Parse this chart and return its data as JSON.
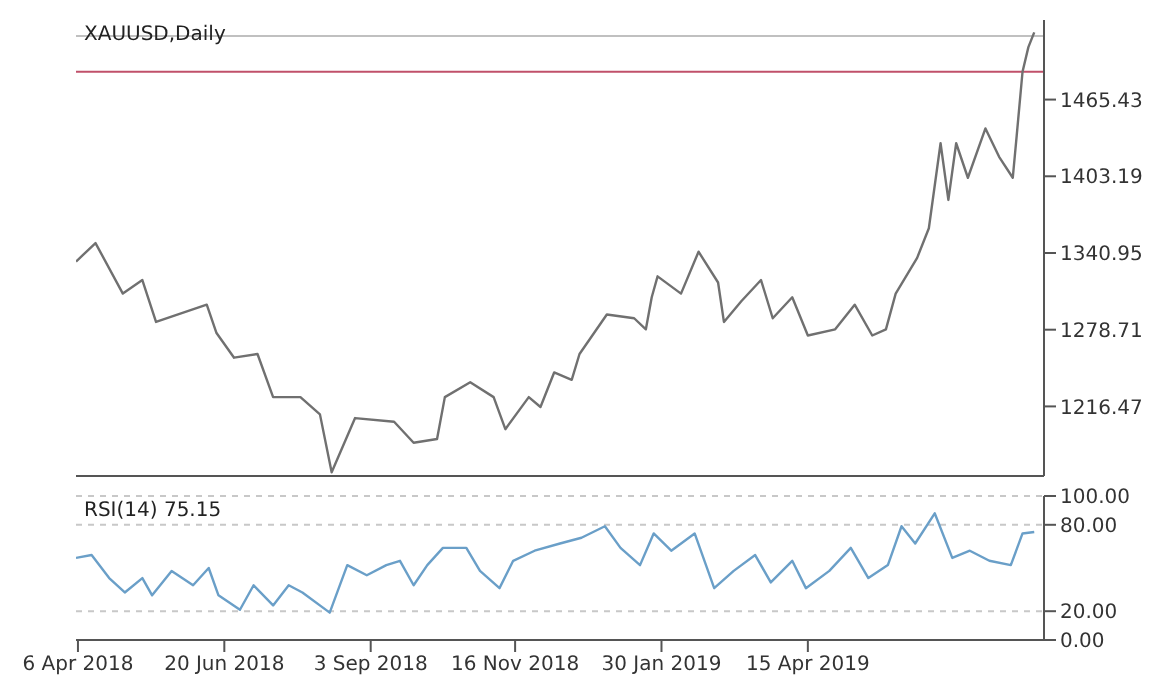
{
  "chart_data": [
    {
      "type": "line",
      "title": "XAUUSD,Daily",
      "tick_labels": "y",
      "x": [
        "2018-04-05",
        "2018-04-15",
        "2018-04-29",
        "2018-05-09",
        "2018-05-16",
        "2018-06-11",
        "2018-06-16",
        "2018-06-25",
        "2018-07-07",
        "2018-07-15",
        "2018-07-29",
        "2018-08-08",
        "2018-08-14",
        "2018-08-26",
        "2018-09-15",
        "2018-09-25",
        "2018-10-07",
        "2018-10-11",
        "2018-10-24",
        "2018-11-05",
        "2018-11-11",
        "2018-11-23",
        "2018-11-29",
        "2018-12-06",
        "2018-12-15",
        "2018-12-19",
        "2019-01-02",
        "2019-01-16",
        "2019-01-22",
        "2019-01-25",
        "2019-01-28",
        "2019-02-09",
        "2019-02-18",
        "2019-02-28",
        "2019-03-03",
        "2019-03-12",
        "2019-03-22",
        "2019-03-28",
        "2019-04-07",
        "2019-04-15",
        "2019-04-29",
        "2019-05-09",
        "2019-05-18",
        "2019-05-25",
        "2019-05-30",
        "2019-06-10",
        "2019-06-16",
        "2019-06-22",
        "2019-06-26",
        "2019-06-30",
        "2019-07-06",
        "2019-07-15",
        "2019-07-22",
        "2019-07-29",
        "2019-07-31",
        "2019-08-03",
        "2019-08-06",
        "2019-08-09"
      ],
      "series": [
        {
          "color": "#707070",
          "values": [
            1334,
            1349,
            1308,
            1319,
            1285,
            1299,
            1276,
            1256,
            1259,
            1224,
            1224,
            1210,
            1163,
            1207,
            1204,
            1187,
            1190,
            1224,
            1236,
            1224,
            1198,
            1224,
            1216,
            1244,
            1238,
            1259,
            1291,
            1288,
            1279,
            1305,
            1322,
            1308,
            1342,
            1317,
            1285,
            1302,
            1319,
            1288,
            1305,
            1274,
            1279,
            1299,
            1274,
            1279,
            1308,
            1337,
            1361,
            1430,
            1384,
            1430,
            1402,
            1442,
            1419,
            1402,
            1436,
            1488,
            1508,
            1520
          ]
        }
      ],
      "xlim": [
        "2018-04-05",
        "2019-08-14"
      ],
      "ylim": [
        1160,
        1530
      ],
      "yticks": [
        1216.47,
        1278.71,
        1340.95,
        1403.19,
        1465.43
      ],
      "ref_lines": [
        {
          "axis": "y",
          "value": 1517,
          "color": "#c0c0c0"
        },
        {
          "axis": "y",
          "value": 1488,
          "color": "#c0506a"
        }
      ]
    },
    {
      "type": "line",
      "title": "RSI(14) 75.15",
      "grid": "y",
      "line_style": "solid",
      "x": [
        "2018-04-05",
        "2018-04-13",
        "2018-04-22",
        "2018-04-30",
        "2018-05-09",
        "2018-05-14",
        "2018-05-24",
        "2018-06-04",
        "2018-06-12",
        "2018-06-17",
        "2018-06-28",
        "2018-07-05",
        "2018-07-15",
        "2018-07-23",
        "2018-07-30",
        "2018-08-13",
        "2018-08-22",
        "2018-09-01",
        "2018-09-11",
        "2018-09-18",
        "2018-09-25",
        "2018-10-02",
        "2018-10-10",
        "2018-10-22",
        "2018-10-29",
        "2018-11-08",
        "2018-11-15",
        "2018-11-26",
        "2018-12-09",
        "2018-12-20",
        "2019-01-01",
        "2019-01-09",
        "2019-01-19",
        "2019-01-26",
        "2019-02-04",
        "2019-02-16",
        "2019-02-26",
        "2019-03-08",
        "2019-03-19",
        "2019-03-27",
        "2019-04-07",
        "2019-04-14",
        "2019-04-26",
        "2019-05-07",
        "2019-05-16",
        "2019-05-26",
        "2019-06-02",
        "2019-06-09",
        "2019-06-19",
        "2019-06-28",
        "2019-07-07",
        "2019-07-17",
        "2019-07-28",
        "2019-08-03",
        "2019-08-09"
      ],
      "series": [
        {
          "color": "#6a9fc8",
          "values": [
            57,
            59,
            43,
            33,
            43,
            31,
            48,
            38,
            50,
            31,
            21,
            38,
            24,
            38,
            33,
            19,
            52,
            45,
            52,
            55,
            38,
            52,
            64,
            64,
            48,
            36,
            55,
            62,
            67,
            71,
            79,
            64,
            52,
            74,
            62,
            74,
            36,
            48,
            59,
            40,
            55,
            36,
            48,
            64,
            43,
            52,
            79,
            67,
            88,
            57,
            62,
            55,
            52,
            74,
            75
          ]
        }
      ],
      "xlim": [
        "2018-04-05",
        "2019-08-14"
      ],
      "xticks": [
        {
          "value": "2018-04-06",
          "label": "6 Apr 2018"
        },
        {
          "value": "2018-06-20",
          "label": "20 Jun 2018"
        },
        {
          "value": "2018-09-03",
          "label": "3 Sep 2018"
        },
        {
          "value": "2018-11-16",
          "label": "16 Nov 2018"
        },
        {
          "value": "2019-01-30",
          "label": "30 Jan 2019"
        },
        {
          "value": "2019-04-15",
          "label": "15 Apr 2019"
        }
      ],
      "ylim": [
        0,
        100
      ],
      "yticks": [
        {
          "value": 0,
          "label": "0.00"
        },
        {
          "value": 20,
          "label": "20.00"
        },
        {
          "value": 80,
          "label": "80.00"
        },
        {
          "value": 100,
          "label": "100.00"
        }
      ]
    }
  ]
}
